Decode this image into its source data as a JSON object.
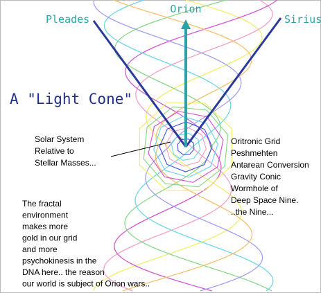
{
  "labels": {
    "left_star": "Pleades",
    "top_star": "Orion",
    "right_star": "Sirius"
  },
  "title": "A \"Light Cone\"",
  "left_note": [
    "Solar System",
    "Relative to",
    "Stellar Masses..."
  ],
  "right_note": [
    "Oritronic Grid",
    "Peshmehten",
    "Antarean Conversion",
    "Gravity Conic",
    "Wormhole of",
    "Deep Space Nine.",
    "..the Nine..."
  ],
  "bottom_note": [
    "The fractal",
    "environment",
    "makes more",
    "gold in our grid",
    "and more",
    "psychokinesis in the",
    "DNA here.. the reason",
    "our world is subject of Orion wars.."
  ]
}
